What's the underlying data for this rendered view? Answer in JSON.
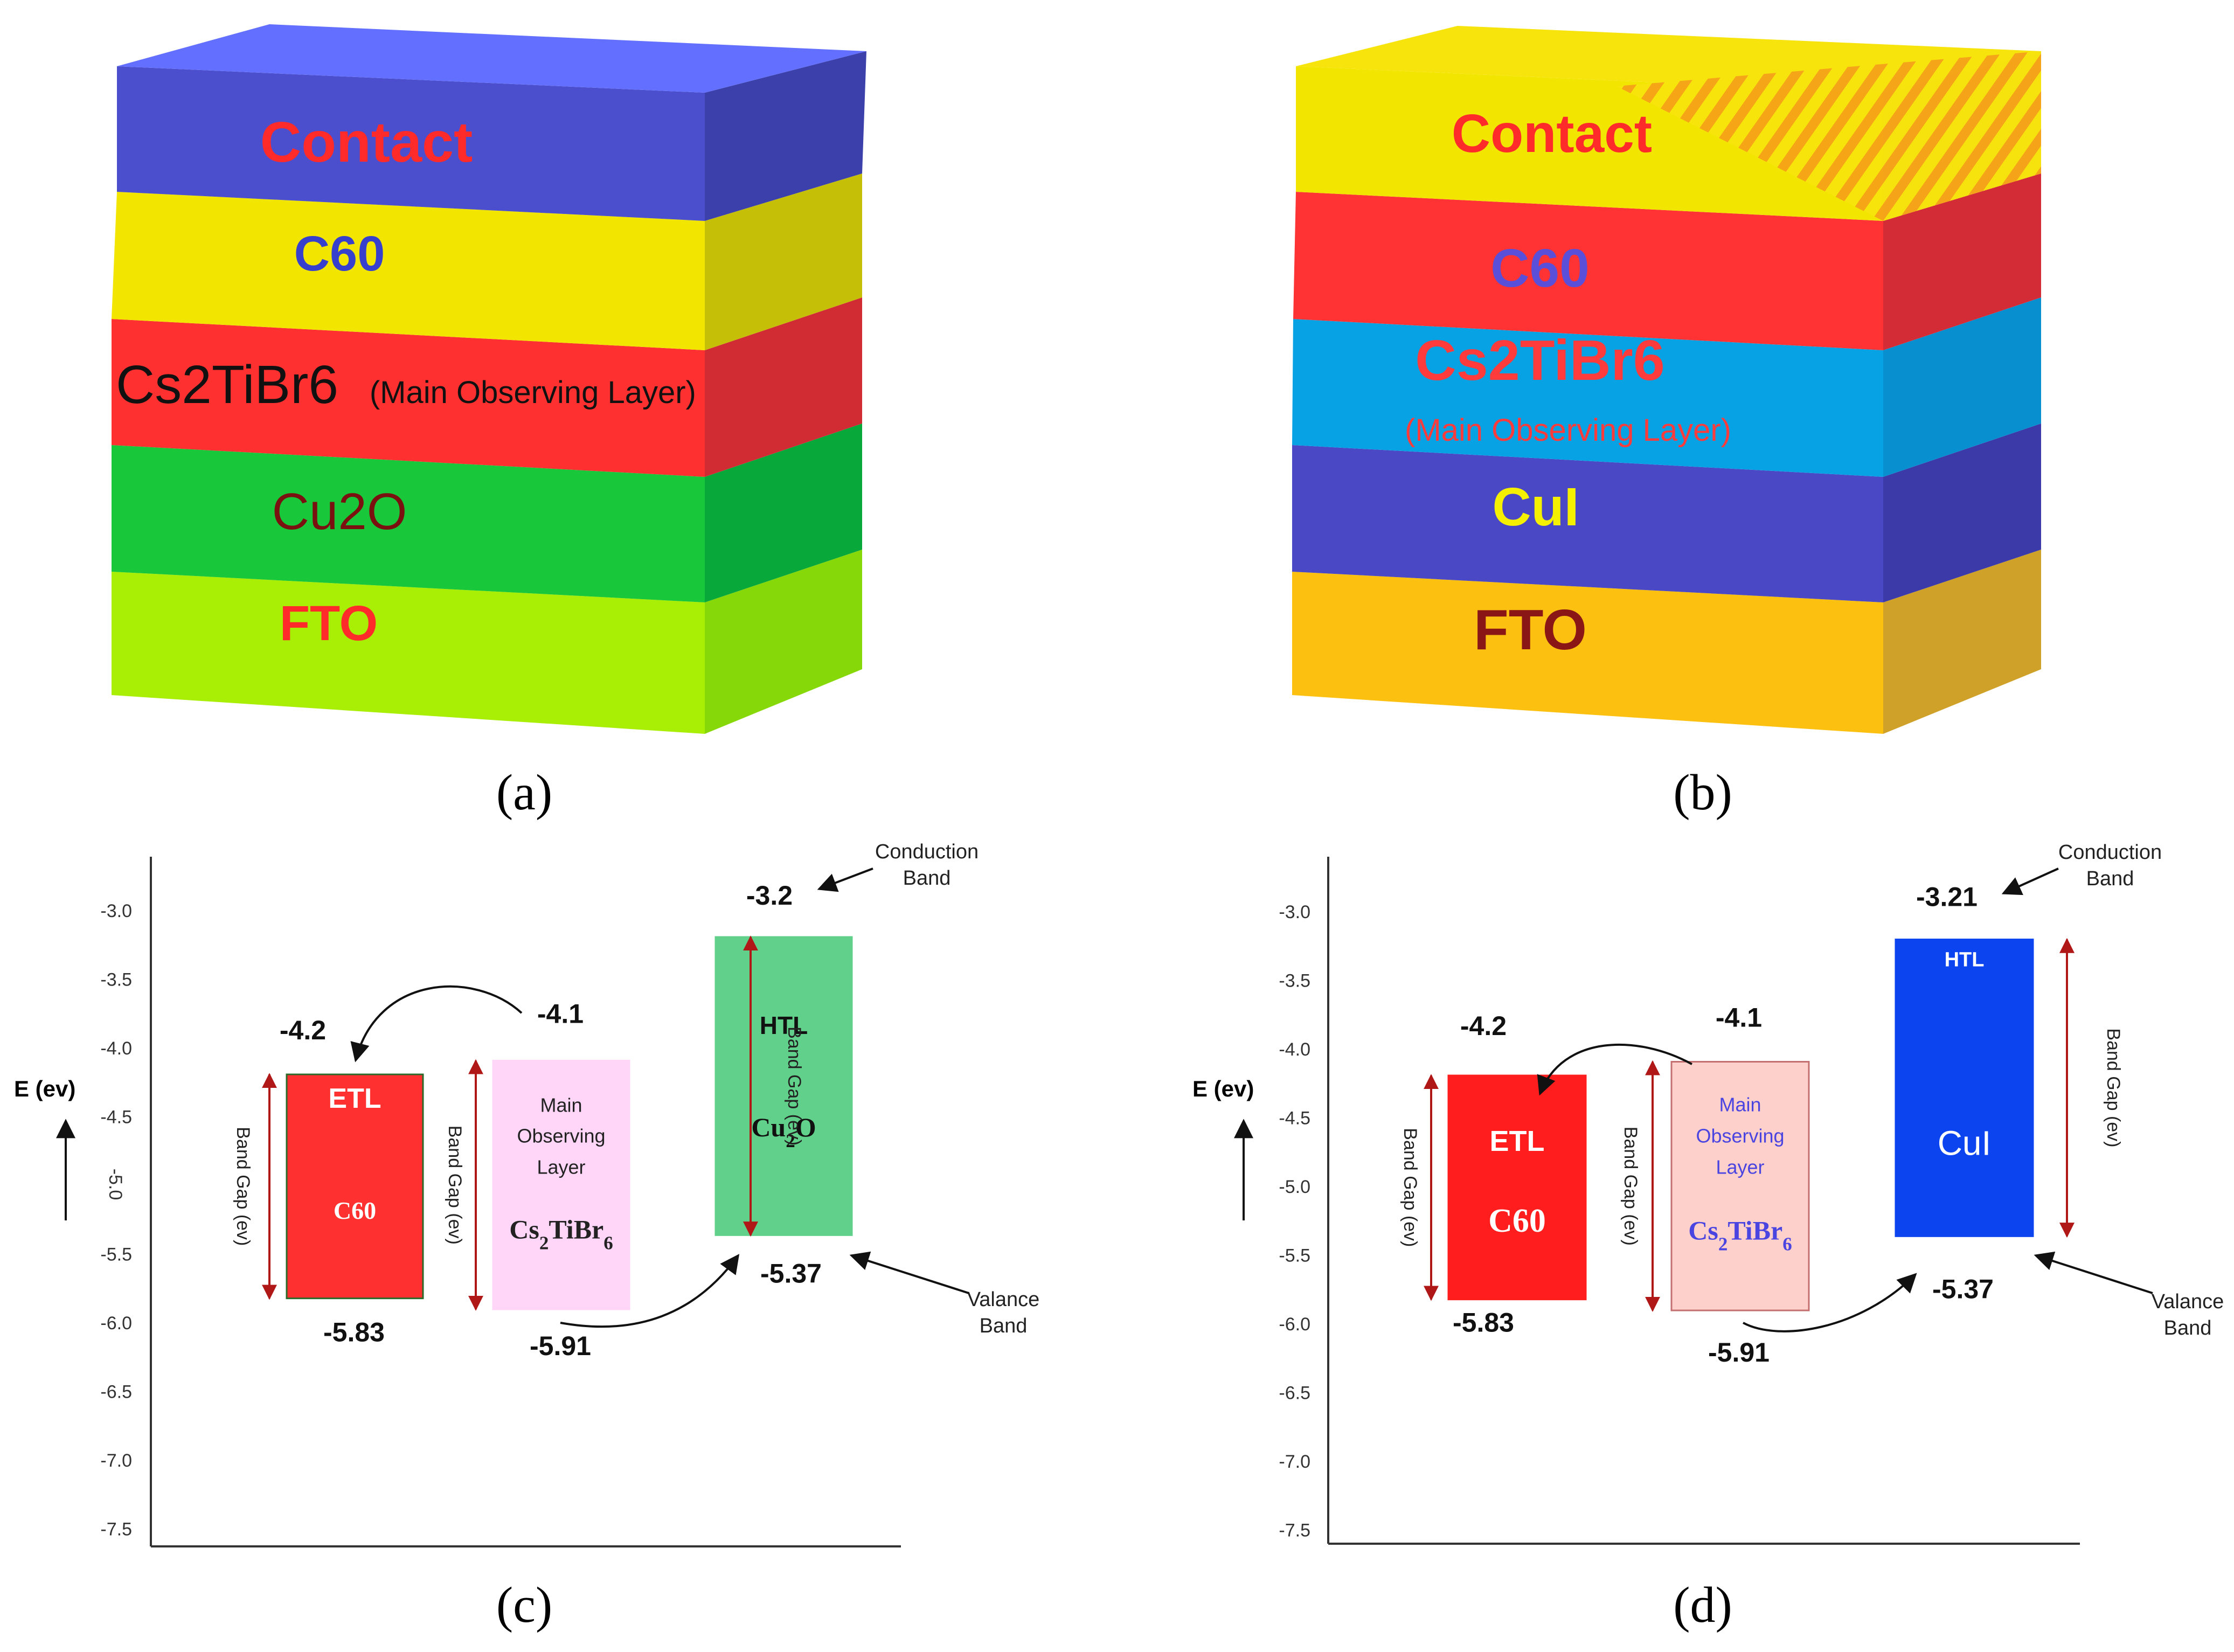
{
  "panels": {
    "a": {
      "caption": "(a)",
      "layers": [
        {
          "name": "Contact",
          "sub": "",
          "front": "#4b4fcd",
          "top": "#6370ff",
          "side": "#3c40aa",
          "text_color": "#ff2a2a"
        },
        {
          "name": "C60",
          "sub": "",
          "front": "#f2e600",
          "top": "#f2e600",
          "side": "#c6bf08",
          "text_color": "#3640cc"
        },
        {
          "name": "Cs2TiBr6",
          "sub": "(Main Observing Layer)",
          "front": "#ff3030",
          "top": "#ff3030",
          "side": "#d12c34",
          "text_color": "#111111"
        },
        {
          "name": "Cu2O",
          "sub": "",
          "front": "#18c73a",
          "top": "#18c73a",
          "side": "#08a83a",
          "text_color": "#7a1010"
        },
        {
          "name": "FTO",
          "sub": "",
          "front": "#a8ee05",
          "top": "#a8ee05",
          "side": "#86d808",
          "text_color": "#ff2a2a"
        }
      ]
    },
    "b": {
      "caption": "(b)",
      "layers": [
        {
          "name": "Contact",
          "sub": "",
          "front": "#f2e600",
          "top": "#f7e40c",
          "side": "#f2d810",
          "text_color": "#ff2a2a"
        },
        {
          "name": "C60",
          "sub": "",
          "front": "#ff3333",
          "top": "#ff3333",
          "side": "#d42c36",
          "text_color": "#5a4fd8"
        },
        {
          "name": "Cs2TiBr6",
          "sub": "(Main Observing Layer)",
          "front": "#06a2e4",
          "top": "#06a2e4",
          "side": "#078fd0",
          "text_color": "#ff3b3b"
        },
        {
          "name": "CuI",
          "sub": "",
          "front": "#4a48c4",
          "top": "#4a48c4",
          "side": "#3b3aa8",
          "text_color": "#f5f000"
        },
        {
          "name": "FTO",
          "sub": "",
          "front": "#fcc010",
          "top": "#fcc010",
          "side": "#cfa128",
          "text_color": "#8a1616"
        }
      ]
    },
    "c": {
      "caption": "(c)",
      "chart_data": {
        "type": "energy-band-diagram",
        "ylabel": "E (ev)",
        "yticks": [
          "-3.0",
          "-3.5",
          "-4.0",
          "-4.5",
          "-5.0",
          "-5.5",
          "-6.0",
          "-6.5",
          "-7.0",
          "-7.5"
        ],
        "ylim": [
          -2.7,
          -7.7
        ],
        "bands": [
          {
            "role": "ETL",
            "material": "C60",
            "cb": -4.2,
            "vb": -5.83,
            "cb_label": "-4.2",
            "vb_label": "-5.83",
            "label_lines": [
              "ETL",
              "C60"
            ],
            "fill": "#ff3030",
            "text_color": "#ffffff"
          },
          {
            "role": "Main Observing Layer",
            "material": "Cs2TiBr6",
            "cb": -4.1,
            "vb": -5.91,
            "cb_label": "-4.1",
            "vb_label": "-5.91",
            "label_lines": [
              "Main",
              "Observing",
              "Layer"
            ],
            "formula": "Cs2TiBr6",
            "fill": "#ffd6f8",
            "text_color": "#222222"
          },
          {
            "role": "HTL",
            "material": "Cu2O",
            "cb": -3.2,
            "vb": -5.37,
            "cb_label": "-3.2",
            "vb_label": "-5.37",
            "label_lines": [
              "HTL"
            ],
            "formula": "Cu2O",
            "fill": "#60d08a",
            "text_color": "#111111"
          }
        ],
        "annotations": {
          "band_gap": "Band Gap (ev)",
          "conduction_band": [
            "Conduction",
            "Band"
          ],
          "valance_band": [
            "Valance",
            "Band"
          ]
        }
      }
    },
    "d": {
      "caption": "(d)",
      "chart_data": {
        "type": "energy-band-diagram",
        "ylabel": "E (ev)",
        "yticks": [
          "-3.0",
          "-3.5",
          "-4.0",
          "-4.5",
          "-5.0",
          "-5.5",
          "-6.0",
          "-6.5",
          "-7.0",
          "-7.5"
        ],
        "ylim": [
          -2.7,
          -7.7
        ],
        "bands": [
          {
            "role": "ETL",
            "material": "C60",
            "cb": -4.2,
            "vb": -5.83,
            "cb_label": "-4.2",
            "vb_label": "-5.83",
            "label_lines": [
              "ETL",
              "C60"
            ],
            "fill": "#ff1d1d",
            "text_color": "#ffffff"
          },
          {
            "role": "Main Observing Layer",
            "material": "Cs2TiBr6",
            "cb": -4.1,
            "vb": -5.91,
            "cb_label": "-4.1",
            "vb_label": "-5.91",
            "label_lines": [
              "Main",
              "Observing",
              "Layer"
            ],
            "formula": "Cs2TiBr6",
            "fill": "#fdd0cb",
            "text_color": "#4a44e0"
          },
          {
            "role": "HTL",
            "material": "CuI",
            "cb": -3.21,
            "vb": -5.37,
            "cb_label": "-3.21",
            "vb_label": "-5.37",
            "label_lines": [
              "HTL",
              "CuI"
            ],
            "fill": "#0c45f0",
            "text_color": "#ffffff"
          }
        ],
        "annotations": {
          "band_gap": "Band Gap (ev)",
          "conduction_band": [
            "Conduction",
            "Band"
          ],
          "valance_band": [
            "Valance",
            "Band"
          ]
        }
      }
    }
  }
}
